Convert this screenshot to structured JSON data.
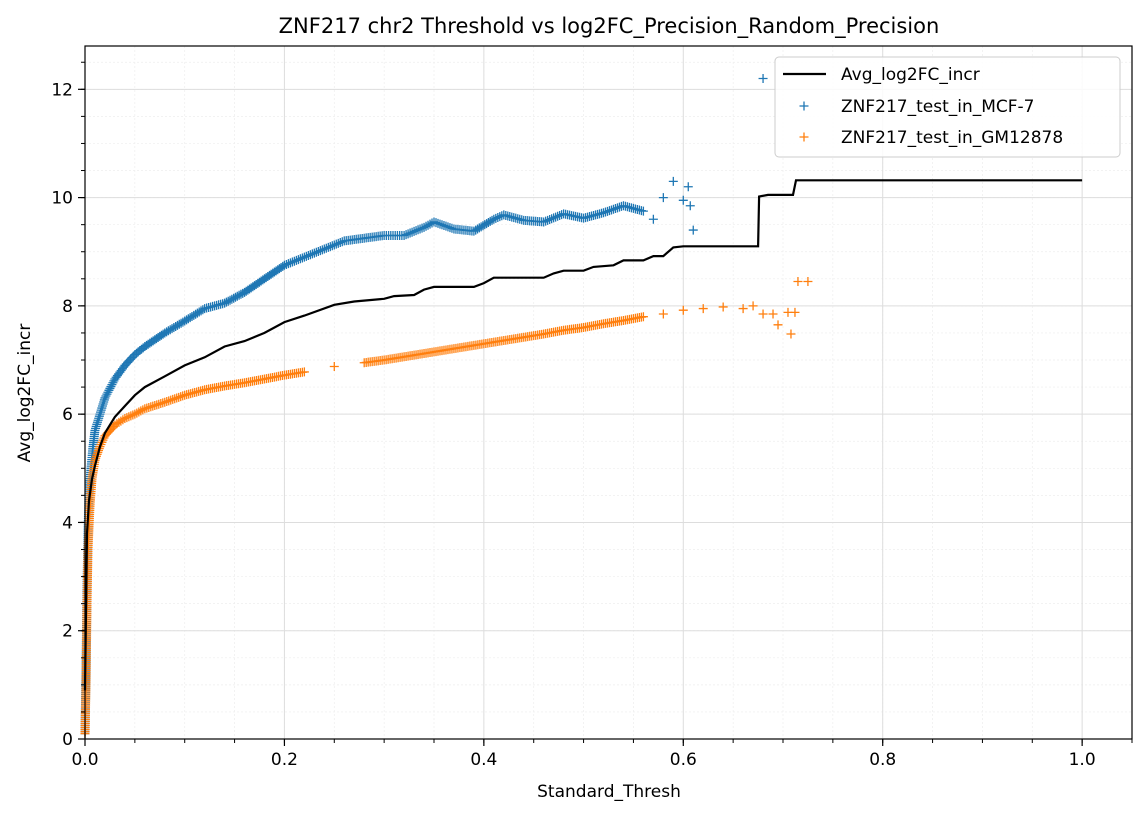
{
  "chart_data": {
    "type": "scatter",
    "title": "ZNF217 chr2 Threshold vs log2FC_Precision_Random_Precision",
    "xlabel": "Standard_Thresh",
    "ylabel": "Avg_log2FC_incr",
    "xlim": [
      0.0,
      1.05
    ],
    "ylim": [
      0,
      12.8
    ],
    "x_ticks": [
      "0.0",
      "0.2",
      "0.4",
      "0.6",
      "0.8",
      "1.0"
    ],
    "y_ticks": [
      "0",
      "2",
      "4",
      "6",
      "8",
      "10",
      "12"
    ],
    "grid": true,
    "minor_grid": true,
    "legend_position": "top-right",
    "line_series": {
      "name": "Avg_log2FC_incr",
      "color": "#000000",
      "points": [
        [
          0.0,
          0.9
        ],
        [
          0.002,
          3.8
        ],
        [
          0.004,
          4.4
        ],
        [
          0.007,
          4.8
        ],
        [
          0.01,
          5.05
        ],
        [
          0.015,
          5.4
        ],
        [
          0.02,
          5.65
        ],
        [
          0.03,
          5.95
        ],
        [
          0.04,
          6.15
        ],
        [
          0.05,
          6.35
        ],
        [
          0.06,
          6.5
        ],
        [
          0.08,
          6.7
        ],
        [
          0.1,
          6.9
        ],
        [
          0.12,
          7.05
        ],
        [
          0.14,
          7.25
        ],
        [
          0.16,
          7.35
        ],
        [
          0.18,
          7.5
        ],
        [
          0.2,
          7.7
        ],
        [
          0.22,
          7.82
        ],
        [
          0.25,
          8.02
        ],
        [
          0.27,
          8.08
        ],
        [
          0.3,
          8.13
        ],
        [
          0.31,
          8.18
        ],
        [
          0.33,
          8.2
        ],
        [
          0.34,
          8.3
        ],
        [
          0.35,
          8.35
        ],
        [
          0.39,
          8.35
        ],
        [
          0.4,
          8.42
        ],
        [
          0.41,
          8.52
        ],
        [
          0.46,
          8.52
        ],
        [
          0.47,
          8.6
        ],
        [
          0.48,
          8.65
        ],
        [
          0.5,
          8.65
        ],
        [
          0.51,
          8.72
        ],
        [
          0.53,
          8.75
        ],
        [
          0.54,
          8.84
        ],
        [
          0.56,
          8.84
        ],
        [
          0.57,
          8.92
        ],
        [
          0.58,
          8.92
        ],
        [
          0.59,
          9.08
        ],
        [
          0.6,
          9.1
        ],
        [
          0.675,
          9.1
        ],
        [
          0.676,
          10.02
        ],
        [
          0.685,
          10.05
        ],
        [
          0.71,
          10.05
        ],
        [
          0.713,
          10.32
        ],
        [
          1.0,
          10.32
        ]
      ]
    },
    "scatter_series": [
      {
        "name": "ZNF217_test_in_MCF-7",
        "color": "#1f77b4",
        "points": [
          [
            0.0,
            0.1
          ],
          [
            0.001,
            1.2
          ],
          [
            0.002,
            2.8
          ],
          [
            0.003,
            3.8
          ],
          [
            0.004,
            4.5
          ],
          [
            0.006,
            5.0
          ],
          [
            0.008,
            5.4
          ],
          [
            0.01,
            5.7
          ],
          [
            0.015,
            6.0
          ],
          [
            0.02,
            6.3
          ],
          [
            0.03,
            6.65
          ],
          [
            0.04,
            6.9
          ],
          [
            0.05,
            7.1
          ],
          [
            0.06,
            7.25
          ],
          [
            0.08,
            7.5
          ],
          [
            0.1,
            7.72
          ],
          [
            0.12,
            7.95
          ],
          [
            0.14,
            8.05
          ],
          [
            0.16,
            8.25
          ],
          [
            0.18,
            8.5
          ],
          [
            0.2,
            8.75
          ],
          [
            0.22,
            8.9
          ],
          [
            0.24,
            9.05
          ],
          [
            0.26,
            9.2
          ],
          [
            0.28,
            9.25
          ],
          [
            0.3,
            9.3
          ],
          [
            0.32,
            9.3
          ],
          [
            0.34,
            9.45
          ],
          [
            0.35,
            9.55
          ],
          [
            0.37,
            9.42
          ],
          [
            0.39,
            9.38
          ],
          [
            0.41,
            9.6
          ],
          [
            0.42,
            9.68
          ],
          [
            0.44,
            9.58
          ],
          [
            0.46,
            9.55
          ],
          [
            0.48,
            9.7
          ],
          [
            0.5,
            9.62
          ],
          [
            0.52,
            9.72
          ],
          [
            0.54,
            9.85
          ],
          [
            0.56,
            9.75
          ],
          [
            0.57,
            9.6
          ],
          [
            0.58,
            10.0
          ],
          [
            0.59,
            10.3
          ],
          [
            0.6,
            9.95
          ],
          [
            0.605,
            10.2
          ],
          [
            0.607,
            9.85
          ],
          [
            0.61,
            9.4
          ],
          [
            0.68,
            12.2
          ]
        ]
      },
      {
        "name": "ZNF217_test_in_GM12878",
        "color": "#ff7f0e",
        "points": [
          [
            0.0,
            0.1
          ],
          [
            0.001,
            1.0
          ],
          [
            0.002,
            2.5
          ],
          [
            0.003,
            3.5
          ],
          [
            0.005,
            4.3
          ],
          [
            0.007,
            4.8
          ],
          [
            0.01,
            5.15
          ],
          [
            0.015,
            5.4
          ],
          [
            0.02,
            5.6
          ],
          [
            0.03,
            5.8
          ],
          [
            0.04,
            5.92
          ],
          [
            0.05,
            6.0
          ],
          [
            0.06,
            6.1
          ],
          [
            0.08,
            6.22
          ],
          [
            0.1,
            6.35
          ],
          [
            0.12,
            6.45
          ],
          [
            0.14,
            6.52
          ],
          [
            0.16,
            6.58
          ],
          [
            0.18,
            6.65
          ],
          [
            0.2,
            6.72
          ],
          [
            0.22,
            6.78
          ],
          [
            0.25,
            6.88
          ],
          [
            0.28,
            6.95
          ],
          [
            0.3,
            7.0
          ],
          [
            0.32,
            7.06
          ],
          [
            0.34,
            7.12
          ],
          [
            0.36,
            7.18
          ],
          [
            0.38,
            7.24
          ],
          [
            0.4,
            7.3
          ],
          [
            0.42,
            7.36
          ],
          [
            0.44,
            7.42
          ],
          [
            0.46,
            7.48
          ],
          [
            0.48,
            7.55
          ],
          [
            0.5,
            7.6
          ],
          [
            0.52,
            7.67
          ],
          [
            0.54,
            7.73
          ],
          [
            0.56,
            7.8
          ],
          [
            0.58,
            7.85
          ],
          [
            0.6,
            7.92
          ],
          [
            0.62,
            7.95
          ],
          [
            0.64,
            7.98
          ],
          [
            0.66,
            7.95
          ],
          [
            0.67,
            8.0
          ],
          [
            0.68,
            7.85
          ],
          [
            0.69,
            7.85
          ],
          [
            0.695,
            7.65
          ],
          [
            0.705,
            7.88
          ],
          [
            0.708,
            7.48
          ],
          [
            0.712,
            7.88
          ],
          [
            0.715,
            8.45
          ],
          [
            0.725,
            8.45
          ]
        ]
      }
    ]
  }
}
